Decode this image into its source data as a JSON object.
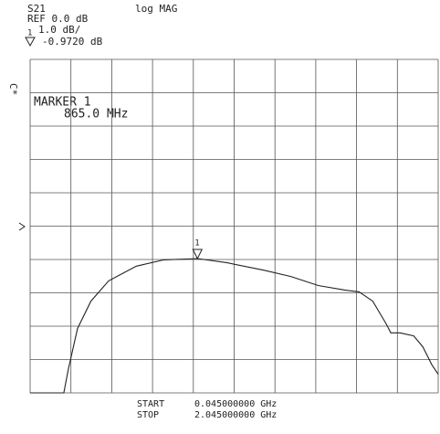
{
  "chart_data": {
    "type": "line",
    "channel": "S21",
    "format": "log MAG",
    "ref_label": "REF 0.0 dB",
    "scale_label": "1.0 dB/",
    "side_label": "C*",
    "marker": {
      "label": "1",
      "x": 0.865,
      "value": -0.972,
      "title": "MARKER 1",
      "x_label": "865.0 MHz",
      "value_label": "-0.9720 dB"
    },
    "start_label": "START",
    "start_value": "0.045000000 GHz",
    "stop_label": "STOP",
    "stop_value": "2.045000000 GHz",
    "xlim": [
      0.045,
      2.045
    ],
    "xticks": [
      0.045,
      0.245,
      0.445,
      0.645,
      0.845,
      1.045,
      1.245,
      1.445,
      1.645,
      1.845,
      2.045
    ],
    "ylim": [
      -5,
      5
    ],
    "yticks": [
      -5,
      -4,
      -3,
      -2,
      -1,
      0,
      1,
      2,
      3,
      4,
      5
    ],
    "grid": true,
    "color": "#222222",
    "x": [
      0.045,
      0.21,
      0.232,
      0.277,
      0.343,
      0.43,
      0.566,
      0.7,
      0.865,
      1.011,
      1.19,
      1.323,
      1.457,
      1.59,
      1.657,
      1.724,
      1.79,
      1.813,
      1.858,
      1.925,
      1.97,
      2.014,
      2.045
    ],
    "values": [
      -5,
      -5,
      -4.3,
      -3.07,
      -2.25,
      -1.64,
      -1.2,
      -1.01,
      -0.972,
      -1.1,
      -1.32,
      -1.51,
      -1.78,
      -1.92,
      -1.97,
      -2.25,
      -2.93,
      -3.2,
      -3.2,
      -3.29,
      -3.62,
      -4.16,
      -4.44
    ]
  }
}
